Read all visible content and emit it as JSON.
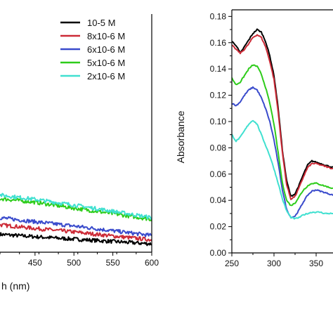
{
  "chart_data": [
    {
      "type": "line",
      "title": "",
      "xlabel": "h (nm)",
      "ylabel": "",
      "xlim": [
        405,
        600
      ],
      "ylim": [
        0,
        0.1
      ],
      "grid": false,
      "x_ticks": [
        "450",
        "500",
        "550",
        "600"
      ],
      "x_tick_values": [
        450,
        500,
        550,
        600
      ],
      "series": [
        {
          "name": "10-5 M",
          "color": "#000000",
          "x": [
            405,
            450,
            500,
            550,
            600
          ],
          "y": [
            0.0075,
            0.0065,
            0.0055,
            0.0045,
            0.0035
          ]
        },
        {
          "name": "8x10-6 M",
          "color": "#cc2a36",
          "x": [
            405,
            450,
            500,
            550,
            600
          ],
          "y": [
            0.0115,
            0.01,
            0.0085,
            0.0068,
            0.0052
          ]
        },
        {
          "name": "6x10-6 M",
          "color": "#3a4bcc",
          "x": [
            405,
            450,
            500,
            550,
            600
          ],
          "y": [
            0.0145,
            0.0128,
            0.011,
            0.009,
            0.007
          ]
        },
        {
          "name": "5x10-6 M",
          "color": "#2ecc1a",
          "x": [
            405,
            450,
            500,
            550,
            600
          ],
          "y": [
            0.0225,
            0.021,
            0.0185,
            0.0162,
            0.0138
          ]
        },
        {
          "name": "2x10-6 M",
          "color": "#40e0d0",
          "x": [
            405,
            450,
            500,
            550,
            600
          ],
          "y": [
            0.024,
            0.0222,
            0.0198,
            0.0172,
            0.0145
          ]
        }
      ]
    },
    {
      "type": "line",
      "title": "",
      "xlabel": "",
      "ylabel": "Absorbance",
      "xlim": [
        250,
        370
      ],
      "ylim": [
        0,
        0.185
      ],
      "grid": false,
      "x_ticks": [
        "250",
        "300",
        "350"
      ],
      "x_tick_values": [
        250,
        300,
        350
      ],
      "y_ticks": [
        "0.00",
        "0.02",
        "0.04",
        "0.06",
        "0.08",
        "0.10",
        "0.12",
        "0.14",
        "0.16",
        "0.18"
      ],
      "y_tick_values": [
        0,
        0.02,
        0.04,
        0.06,
        0.08,
        0.1,
        0.12,
        0.14,
        0.16,
        0.18
      ],
      "series": [
        {
          "name": "10-5 M",
          "color": "#000000",
          "x": [
            250,
            255,
            260,
            265,
            270,
            275,
            280,
            285,
            290,
            295,
            300,
            305,
            310,
            315,
            320,
            325,
            330,
            335,
            340,
            345,
            350,
            355,
            360,
            365,
            370
          ],
          "y": [
            0.161,
            0.158,
            0.152,
            0.157,
            0.162,
            0.167,
            0.17,
            0.168,
            0.161,
            0.15,
            0.135,
            0.11,
            0.078,
            0.055,
            0.043,
            0.045,
            0.052,
            0.06,
            0.067,
            0.07,
            0.069,
            0.068,
            0.067,
            0.066,
            0.065
          ]
        },
        {
          "name": "8x10-6 M",
          "color": "#cc2a36",
          "x": [
            250,
            255,
            260,
            265,
            270,
            275,
            280,
            285,
            290,
            295,
            300,
            305,
            310,
            315,
            320,
            325,
            330,
            335,
            340,
            345,
            350,
            355,
            360,
            365,
            370
          ],
          "y": [
            0.158,
            0.155,
            0.152,
            0.155,
            0.159,
            0.164,
            0.166,
            0.164,
            0.157,
            0.146,
            0.132,
            0.107,
            0.076,
            0.052,
            0.041,
            0.043,
            0.05,
            0.058,
            0.065,
            0.068,
            0.068,
            0.067,
            0.066,
            0.065,
            0.064
          ]
        },
        {
          "name": "6x10-6 M",
          "color": "#3a4bcc",
          "x": [
            250,
            255,
            260,
            265,
            270,
            275,
            280,
            285,
            290,
            295,
            300,
            305,
            310,
            315,
            320,
            325,
            330,
            335,
            340,
            345,
            350,
            355,
            360,
            365,
            370
          ],
          "y": [
            0.114,
            0.112,
            0.115,
            0.12,
            0.124,
            0.126,
            0.124,
            0.118,
            0.11,
            0.1,
            0.086,
            0.068,
            0.048,
            0.033,
            0.027,
            0.028,
            0.033,
            0.039,
            0.044,
            0.047,
            0.048,
            0.047,
            0.046,
            0.045,
            0.044
          ]
        },
        {
          "name": "5x10-6 M",
          "color": "#2ecc1a",
          "x": [
            250,
            255,
            260,
            265,
            270,
            275,
            280,
            285,
            290,
            295,
            300,
            305,
            310,
            315,
            320,
            325,
            330,
            335,
            340,
            345,
            350,
            355,
            360,
            365,
            370
          ],
          "y": [
            0.133,
            0.128,
            0.13,
            0.135,
            0.14,
            0.143,
            0.142,
            0.136,
            0.126,
            0.114,
            0.098,
            0.076,
            0.053,
            0.04,
            0.036,
            0.038,
            0.043,
            0.048,
            0.051,
            0.053,
            0.053,
            0.052,
            0.051,
            0.05,
            0.049
          ]
        },
        {
          "name": "2x10-6 M",
          "color": "#40e0d0",
          "x": [
            250,
            255,
            260,
            265,
            270,
            275,
            280,
            285,
            290,
            295,
            300,
            305,
            310,
            315,
            320,
            325,
            330,
            335,
            340,
            345,
            350,
            355,
            360,
            365,
            370
          ],
          "y": [
            0.09,
            0.085,
            0.088,
            0.093,
            0.098,
            0.101,
            0.098,
            0.09,
            0.082,
            0.074,
            0.064,
            0.053,
            0.041,
            0.032,
            0.027,
            0.026,
            0.027,
            0.029,
            0.03,
            0.031,
            0.031,
            0.031,
            0.03,
            0.03,
            0.03
          ]
        }
      ]
    }
  ],
  "legend": {
    "placement": "top-center",
    "entries": [
      {
        "label": "10-5 M",
        "color": "#000000"
      },
      {
        "label": "8x10-6 M",
        "color": "#cc2a36"
      },
      {
        "label": "6x10-6 M",
        "color": "#3a4bcc"
      },
      {
        "label": "5x10-6 M",
        "color": "#2ecc1a"
      },
      {
        "label": "2x10-6 M",
        "color": "#40e0d0"
      }
    ]
  }
}
